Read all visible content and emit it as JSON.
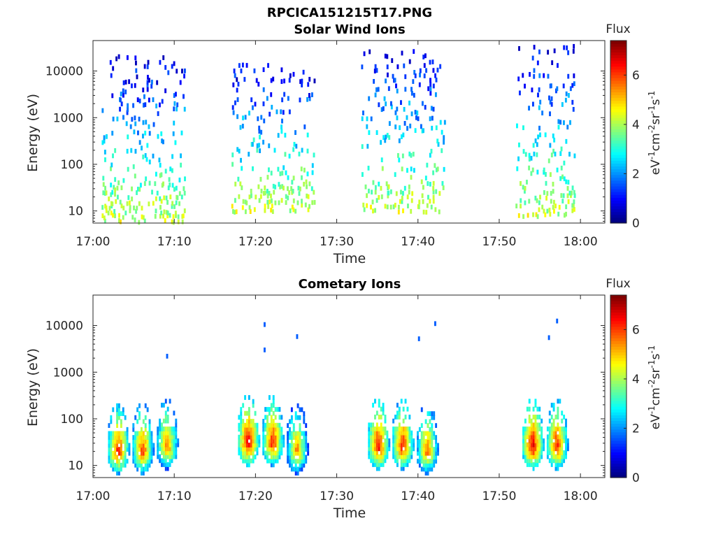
{
  "figure": {
    "file_title": "RPCICA151215T17.PNG"
  },
  "colors": {
    "colormap": "jet",
    "axis": "#262626",
    "background": "#ffffff"
  },
  "chart_data": [
    {
      "type": "heatmap",
      "title": "Solar Wind Ions",
      "xlabel": "Time",
      "ylabel": "Energy (eV)",
      "xticks": [
        "17:00",
        "17:10",
        "17:20",
        "17:30",
        "17:40",
        "17:50",
        "18:00"
      ],
      "xlim": [
        "17:00",
        "18:03"
      ],
      "yscale": "log",
      "ylim": [
        5.5,
        45000
      ],
      "yticks": [
        10,
        100,
        1000,
        10000
      ],
      "ytick_labels": [
        "10",
        "100",
        "1000",
        "10000"
      ],
      "grid": false,
      "colorbar": {
        "title": "Flux",
        "label": "eV-1cm-2sr-1s-1",
        "range": [
          0,
          7.4
        ],
        "ticks": [
          0,
          2,
          4,
          6
        ]
      },
      "data_blocks": [
        {
          "start": "17:01",
          "end": "17:11",
          "energy_range": [
            6,
            20000
          ],
          "flux_range": [
            0.5,
            4.5
          ],
          "note": "sparse scattered counts"
        },
        {
          "start": "17:17",
          "end": "17:27",
          "energy_range": [
            10,
            15000
          ],
          "flux_range": [
            0.5,
            4.5
          ]
        },
        {
          "start": "17:33",
          "end": "17:43",
          "energy_range": [
            10,
            30000
          ],
          "flux_range": [
            0.5,
            4.5
          ]
        },
        {
          "start": "17:52",
          "end": "17:59",
          "energy_range": [
            8,
            40000
          ],
          "flux_range": [
            0.5,
            4.5
          ]
        }
      ]
    },
    {
      "type": "heatmap",
      "title": "Cometary Ions",
      "xlabel": "Time",
      "ylabel": "Energy (eV)",
      "xticks": [
        "17:00",
        "17:10",
        "17:20",
        "17:30",
        "17:40",
        "17:50",
        "18:00"
      ],
      "xlim": [
        "17:00",
        "18:03"
      ],
      "yscale": "log",
      "ylim": [
        5.5,
        45000
      ],
      "yticks": [
        10,
        100,
        1000,
        10000
      ],
      "ytick_labels": [
        "10",
        "100",
        "1000",
        "10000"
      ],
      "grid": false,
      "colorbar": {
        "title": "Flux",
        "label": "eV-1cm-2sr-1s-1",
        "range": [
          0,
          7.4
        ],
        "ticks": [
          0,
          2,
          4,
          6
        ]
      },
      "hotspots": [
        {
          "time": "17:03",
          "energy": 20,
          "flux": 6.5
        },
        {
          "time": "17:06",
          "energy": 20,
          "flux": 6.3
        },
        {
          "time": "17:09",
          "energy": 25,
          "flux": 6.0
        },
        {
          "time": "17:19",
          "energy": 30,
          "flux": 6.8
        },
        {
          "time": "17:22",
          "energy": 30,
          "flux": 6.5
        },
        {
          "time": "17:25",
          "energy": 20,
          "flux": 5.8
        },
        {
          "time": "17:35",
          "energy": 25,
          "flux": 6.7
        },
        {
          "time": "17:38",
          "energy": 25,
          "flux": 6.5
        },
        {
          "time": "17:41",
          "energy": 20,
          "flux": 6.0
        },
        {
          "time": "17:54",
          "energy": 25,
          "flux": 6.8
        },
        {
          "time": "17:57",
          "energy": 25,
          "flux": 6.5
        }
      ],
      "isolated_points": [
        {
          "time": "17:09",
          "energy": 2200
        },
        {
          "time": "17:21",
          "energy": 3000
        },
        {
          "time": "17:21",
          "energy": 10500
        },
        {
          "time": "17:25",
          "energy": 5800
        },
        {
          "time": "17:42",
          "energy": 11000
        },
        {
          "time": "17:40",
          "energy": 5200
        },
        {
          "time": "17:57",
          "energy": 12500
        },
        {
          "time": "17:56",
          "energy": 5500
        }
      ]
    }
  ]
}
